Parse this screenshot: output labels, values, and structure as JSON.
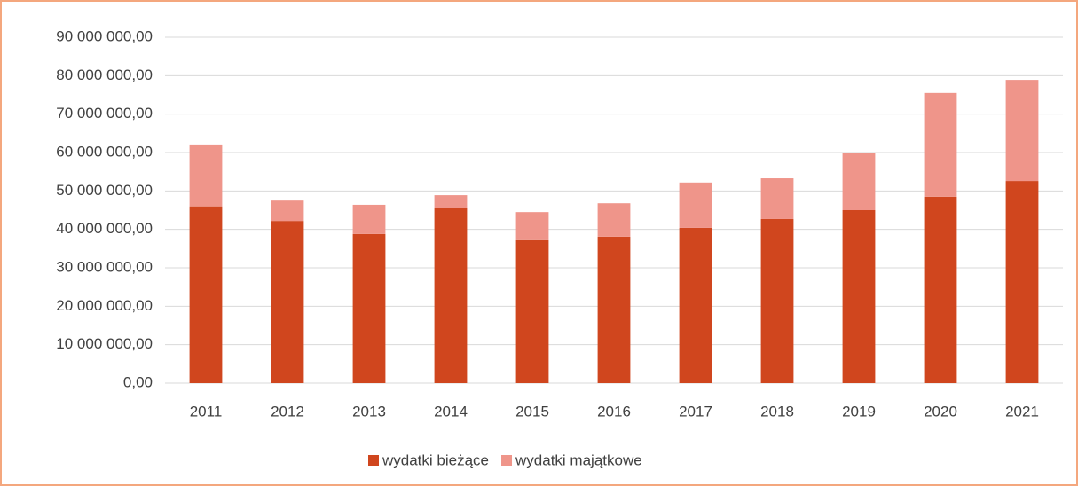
{
  "chart_data": {
    "type": "stacked_bar",
    "categories": [
      "2011",
      "2012",
      "2013",
      "2014",
      "2015",
      "2016",
      "2017",
      "2018",
      "2019",
      "2020",
      "2021"
    ],
    "series": [
      {
        "name": "wydatki bieżące",
        "color": "#d0461e",
        "values": [
          46000000,
          42200000,
          38800000,
          45500000,
          37200000,
          38100000,
          40400000,
          42700000,
          45000000,
          48500000,
          52600000
        ]
      },
      {
        "name": "wydatki majątkowe",
        "color": "#ef958a",
        "values": [
          16100000,
          5300000,
          7600000,
          3400000,
          7300000,
          8700000,
          11800000,
          10600000,
          14800000,
          27000000,
          26300000
        ]
      }
    ],
    "ylim": [
      0,
      90000000
    ],
    "yticks": [
      {
        "value": 0,
        "label": "0,00"
      },
      {
        "value": 10000000,
        "label": "10 000 000,00"
      },
      {
        "value": 20000000,
        "label": "20 000 000,00"
      },
      {
        "value": 30000000,
        "label": "30 000 000,00"
      },
      {
        "value": 40000000,
        "label": "40 000 000,00"
      },
      {
        "value": 50000000,
        "label": "50 000 000,00"
      },
      {
        "value": 60000000,
        "label": "60 000 000,00"
      },
      {
        "value": 70000000,
        "label": "70 000 000,00"
      },
      {
        "value": 80000000,
        "label": "80 000 000,00"
      },
      {
        "value": 90000000,
        "label": "90 000 000,00"
      }
    ],
    "grid": true,
    "legend": "bottom"
  }
}
